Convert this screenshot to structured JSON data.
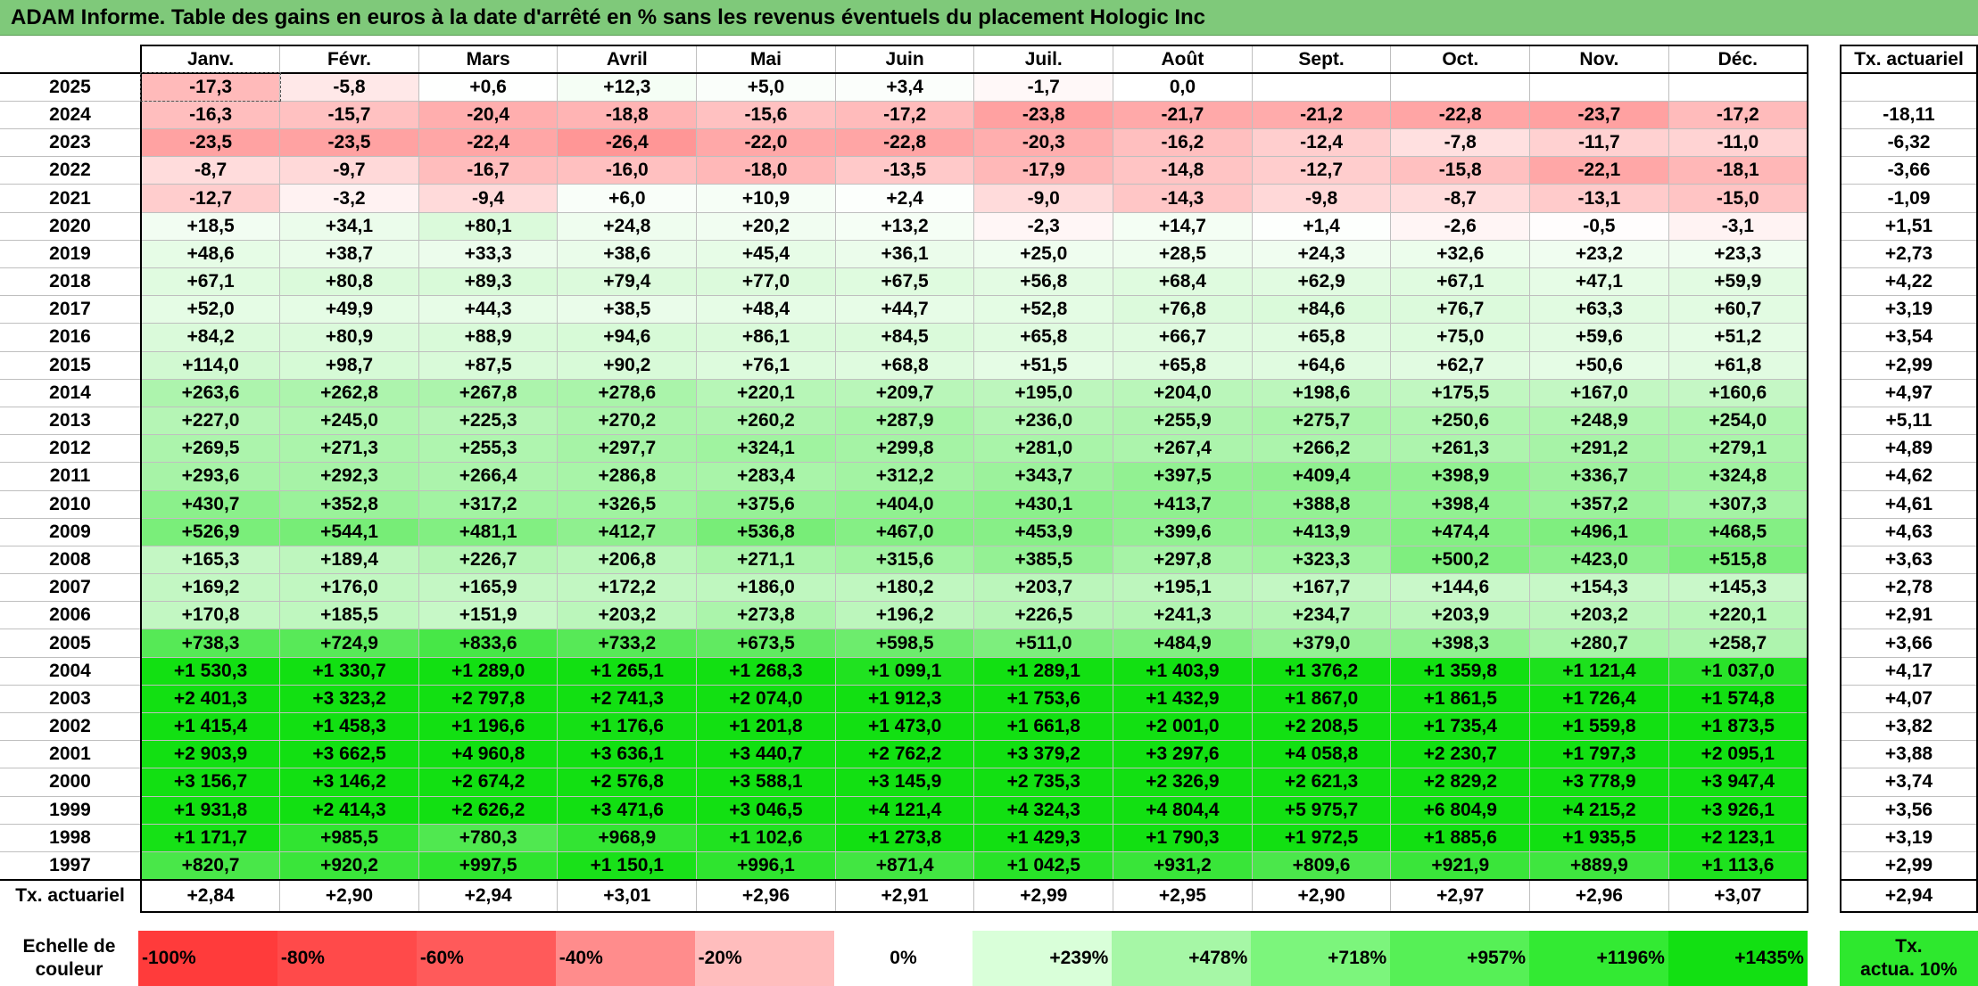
{
  "title": "ADAM Informe. Table des gains en euros à la date d'arrêté en % sans les revenus éventuels du placement Hologic Inc",
  "months": [
    "Janv.",
    "Févr.",
    "Mars",
    "Avril",
    "Mai",
    "Juin",
    "Juil.",
    "Août",
    "Sept.",
    "Oct.",
    "Nov.",
    "Déc."
  ],
  "tx_header": "Tx. actuariel",
  "rows": [
    {
      "year": "2025",
      "values": [
        "-17,3",
        "-5,8",
        "+0,6",
        "+12,3",
        "+5,0",
        "+3,4",
        "-1,7",
        "0,0",
        "",
        "",
        "",
        ""
      ],
      "tx": ""
    },
    {
      "year": "2024",
      "values": [
        "-16,3",
        "-15,7",
        "-20,4",
        "-18,8",
        "-15,6",
        "-17,2",
        "-23,8",
        "-21,7",
        "-21,2",
        "-22,8",
        "-23,7",
        "-17,2"
      ],
      "tx": "-18,11"
    },
    {
      "year": "2023",
      "values": [
        "-23,5",
        "-23,5",
        "-22,4",
        "-26,4",
        "-22,0",
        "-22,8",
        "-20,3",
        "-16,2",
        "-12,4",
        "-7,8",
        "-11,7",
        "-11,0"
      ],
      "tx": "-6,32"
    },
    {
      "year": "2022",
      "values": [
        "-8,7",
        "-9,7",
        "-16,7",
        "-16,0",
        "-18,0",
        "-13,5",
        "-17,9",
        "-14,8",
        "-12,7",
        "-15,8",
        "-22,1",
        "-18,1"
      ],
      "tx": "-3,66"
    },
    {
      "year": "2021",
      "values": [
        "-12,7",
        "-3,2",
        "-9,4",
        "+6,0",
        "+10,9",
        "+2,4",
        "-9,0",
        "-14,3",
        "-9,8",
        "-8,7",
        "-13,1",
        "-15,0"
      ],
      "tx": "-1,09"
    },
    {
      "year": "2020",
      "values": [
        "+18,5",
        "+34,1",
        "+80,1",
        "+24,8",
        "+20,2",
        "+13,2",
        "-2,3",
        "+14,7",
        "+1,4",
        "-2,6",
        "-0,5",
        "-3,1"
      ],
      "tx": "+1,51"
    },
    {
      "year": "2019",
      "values": [
        "+48,6",
        "+38,7",
        "+33,3",
        "+38,6",
        "+45,4",
        "+36,1",
        "+25,0",
        "+28,5",
        "+24,3",
        "+32,6",
        "+23,2",
        "+23,3"
      ],
      "tx": "+2,73"
    },
    {
      "year": "2018",
      "values": [
        "+67,1",
        "+80,8",
        "+89,3",
        "+79,4",
        "+77,0",
        "+67,5",
        "+56,8",
        "+68,4",
        "+62,9",
        "+67,1",
        "+47,1",
        "+59,9"
      ],
      "tx": "+4,22"
    },
    {
      "year": "2017",
      "values": [
        "+52,0",
        "+49,9",
        "+44,3",
        "+38,5",
        "+48,4",
        "+44,7",
        "+52,8",
        "+76,8",
        "+84,6",
        "+76,7",
        "+63,3",
        "+60,7"
      ],
      "tx": "+3,19"
    },
    {
      "year": "2016",
      "values": [
        "+84,2",
        "+80,9",
        "+88,9",
        "+94,6",
        "+86,1",
        "+84,5",
        "+65,8",
        "+66,7",
        "+65,8",
        "+75,0",
        "+59,6",
        "+51,2"
      ],
      "tx": "+3,54"
    },
    {
      "year": "2015",
      "values": [
        "+114,0",
        "+98,7",
        "+87,5",
        "+90,2",
        "+76,1",
        "+68,8",
        "+51,5",
        "+65,8",
        "+64,6",
        "+62,7",
        "+50,6",
        "+61,8"
      ],
      "tx": "+2,99"
    },
    {
      "year": "2014",
      "values": [
        "+263,6",
        "+262,8",
        "+267,8",
        "+278,6",
        "+220,1",
        "+209,7",
        "+195,0",
        "+204,0",
        "+198,6",
        "+175,5",
        "+167,0",
        "+160,6"
      ],
      "tx": "+4,97"
    },
    {
      "year": "2013",
      "values": [
        "+227,0",
        "+245,0",
        "+225,3",
        "+270,2",
        "+260,2",
        "+287,9",
        "+236,0",
        "+255,9",
        "+275,7",
        "+250,6",
        "+248,9",
        "+254,0"
      ],
      "tx": "+5,11"
    },
    {
      "year": "2012",
      "values": [
        "+269,5",
        "+271,3",
        "+255,3",
        "+297,7",
        "+324,1",
        "+299,8",
        "+281,0",
        "+267,4",
        "+266,2",
        "+261,3",
        "+291,2",
        "+279,1"
      ],
      "tx": "+4,89"
    },
    {
      "year": "2011",
      "values": [
        "+293,6",
        "+292,3",
        "+266,4",
        "+286,8",
        "+283,4",
        "+312,2",
        "+343,7",
        "+397,5",
        "+409,4",
        "+398,9",
        "+336,7",
        "+324,8"
      ],
      "tx": "+4,62"
    },
    {
      "year": "2010",
      "values": [
        "+430,7",
        "+352,8",
        "+317,2",
        "+326,5",
        "+375,6",
        "+404,0",
        "+430,1",
        "+413,7",
        "+388,8",
        "+398,4",
        "+357,2",
        "+307,3"
      ],
      "tx": "+4,61"
    },
    {
      "year": "2009",
      "values": [
        "+526,9",
        "+544,1",
        "+481,1",
        "+412,7",
        "+536,8",
        "+467,0",
        "+453,9",
        "+399,6",
        "+413,9",
        "+474,4",
        "+496,1",
        "+468,5"
      ],
      "tx": "+4,63"
    },
    {
      "year": "2008",
      "values": [
        "+165,3",
        "+189,4",
        "+226,7",
        "+206,8",
        "+271,1",
        "+315,6",
        "+385,5",
        "+297,8",
        "+323,3",
        "+500,2",
        "+423,0",
        "+515,8"
      ],
      "tx": "+3,63"
    },
    {
      "year": "2007",
      "values": [
        "+169,2",
        "+176,0",
        "+165,9",
        "+172,2",
        "+186,0",
        "+180,2",
        "+203,7",
        "+195,1",
        "+167,7",
        "+144,6",
        "+154,3",
        "+145,3"
      ],
      "tx": "+2,78"
    },
    {
      "year": "2006",
      "values": [
        "+170,8",
        "+185,5",
        "+151,9",
        "+203,2",
        "+273,8",
        "+196,2",
        "+226,5",
        "+241,3",
        "+234,7",
        "+203,9",
        "+203,2",
        "+220,1"
      ],
      "tx": "+2,91"
    },
    {
      "year": "2005",
      "values": [
        "+738,3",
        "+724,9",
        "+833,6",
        "+733,2",
        "+673,5",
        "+598,5",
        "+511,0",
        "+484,9",
        "+379,0",
        "+398,3",
        "+280,7",
        "+258,7"
      ],
      "tx": "+3,66"
    },
    {
      "year": "2004",
      "values": [
        "+1 530,3",
        "+1 330,7",
        "+1 289,0",
        "+1 265,1",
        "+1 268,3",
        "+1 099,1",
        "+1 289,1",
        "+1 403,9",
        "+1 376,2",
        "+1 359,8",
        "+1 121,4",
        "+1 037,0"
      ],
      "tx": "+4,17"
    },
    {
      "year": "2003",
      "values": [
        "+2 401,3",
        "+3 323,2",
        "+2 797,8",
        "+2 741,3",
        "+2 074,0",
        "+1 912,3",
        "+1 753,6",
        "+1 432,9",
        "+1 867,0",
        "+1 861,5",
        "+1 726,4",
        "+1 574,8"
      ],
      "tx": "+4,07"
    },
    {
      "year": "2002",
      "values": [
        "+1 415,4",
        "+1 458,3",
        "+1 196,6",
        "+1 176,6",
        "+1 201,8",
        "+1 473,0",
        "+1 661,8",
        "+2 001,0",
        "+2 208,5",
        "+1 735,4",
        "+1 559,8",
        "+1 873,5"
      ],
      "tx": "+3,82"
    },
    {
      "year": "2001",
      "values": [
        "+2 903,9",
        "+3 662,5",
        "+4 960,8",
        "+3 636,1",
        "+3 440,7",
        "+2 762,2",
        "+3 379,2",
        "+3 297,6",
        "+4 058,8",
        "+2 230,7",
        "+1 797,3",
        "+2 095,1"
      ],
      "tx": "+3,88"
    },
    {
      "year": "2000",
      "values": [
        "+3 156,7",
        "+3 146,2",
        "+2 674,2",
        "+2 576,8",
        "+3 588,1",
        "+3 145,9",
        "+2 735,3",
        "+2 326,9",
        "+2 621,3",
        "+2 829,2",
        "+3 778,9",
        "+3 947,4"
      ],
      "tx": "+3,74"
    },
    {
      "year": "1999",
      "values": [
        "+1 931,8",
        "+2 414,3",
        "+2 626,2",
        "+3 471,6",
        "+3 046,5",
        "+4 121,4",
        "+4 324,3",
        "+4 804,4",
        "+5 975,7",
        "+6 804,9",
        "+4 215,2",
        "+3 926,1"
      ],
      "tx": "+3,56"
    },
    {
      "year": "1998",
      "values": [
        "+1 171,7",
        "+985,5",
        "+780,3",
        "+968,9",
        "+1 102,6",
        "+1 273,8",
        "+1 429,3",
        "+1 790,3",
        "+1 972,5",
        "+1 885,6",
        "+1 935,5",
        "+2 123,1"
      ],
      "tx": "+3,19"
    },
    {
      "year": "1997",
      "values": [
        "+820,7",
        "+920,2",
        "+997,5",
        "+1 150,1",
        "+996,1",
        "+871,4",
        "+1 042,5",
        "+931,2",
        "+809,6",
        "+921,9",
        "+889,9",
        "+1 113,6"
      ],
      "tx": "+2,99"
    }
  ],
  "tx_row": {
    "label": "Tx. actuariel",
    "values": [
      "+2,84",
      "+2,90",
      "+2,94",
      "+3,01",
      "+2,96",
      "+2,91",
      "+2,99",
      "+2,95",
      "+2,90",
      "+2,97",
      "+2,96",
      "+3,07"
    ],
    "total": "+2,94"
  },
  "scale": {
    "label_line1": "Echelle de",
    "label_line2": "couleur",
    "items": [
      {
        "label": "-100%",
        "color": "#ff3b3b",
        "kind": "neg"
      },
      {
        "label": "-80%",
        "color": "#ff4a4a",
        "kind": "neg"
      },
      {
        "label": "-60%",
        "color": "#ff5a5a",
        "kind": "neg"
      },
      {
        "label": "-40%",
        "color": "#ff8c8c",
        "kind": "neg"
      },
      {
        "label": "-20%",
        "color": "#ffbdbd",
        "kind": "neg"
      },
      {
        "label": "0%",
        "color": "#ffffff",
        "kind": "zero"
      },
      {
        "label": "+239%",
        "color": "#d9ffd9",
        "kind": "pos"
      },
      {
        "label": "+478%",
        "color": "#a6f7a6",
        "kind": "pos"
      },
      {
        "label": "+718%",
        "color": "#7cf57c",
        "kind": "pos"
      },
      {
        "label": "+957%",
        "color": "#56f056",
        "kind": "pos"
      },
      {
        "label": "+1196%",
        "color": "#33ea33",
        "kind": "pos"
      },
      {
        "label": "+1435%",
        "color": "#12e012",
        "kind": "pos"
      }
    ],
    "tx_line1": "Tx.",
    "tx_line2": "actua. 10%",
    "tx_color": "#2ee82e"
  },
  "colors": {
    "title_bg": "#7fc97a",
    "max_green": "#12e012",
    "max_red": "#ff3b3b"
  }
}
